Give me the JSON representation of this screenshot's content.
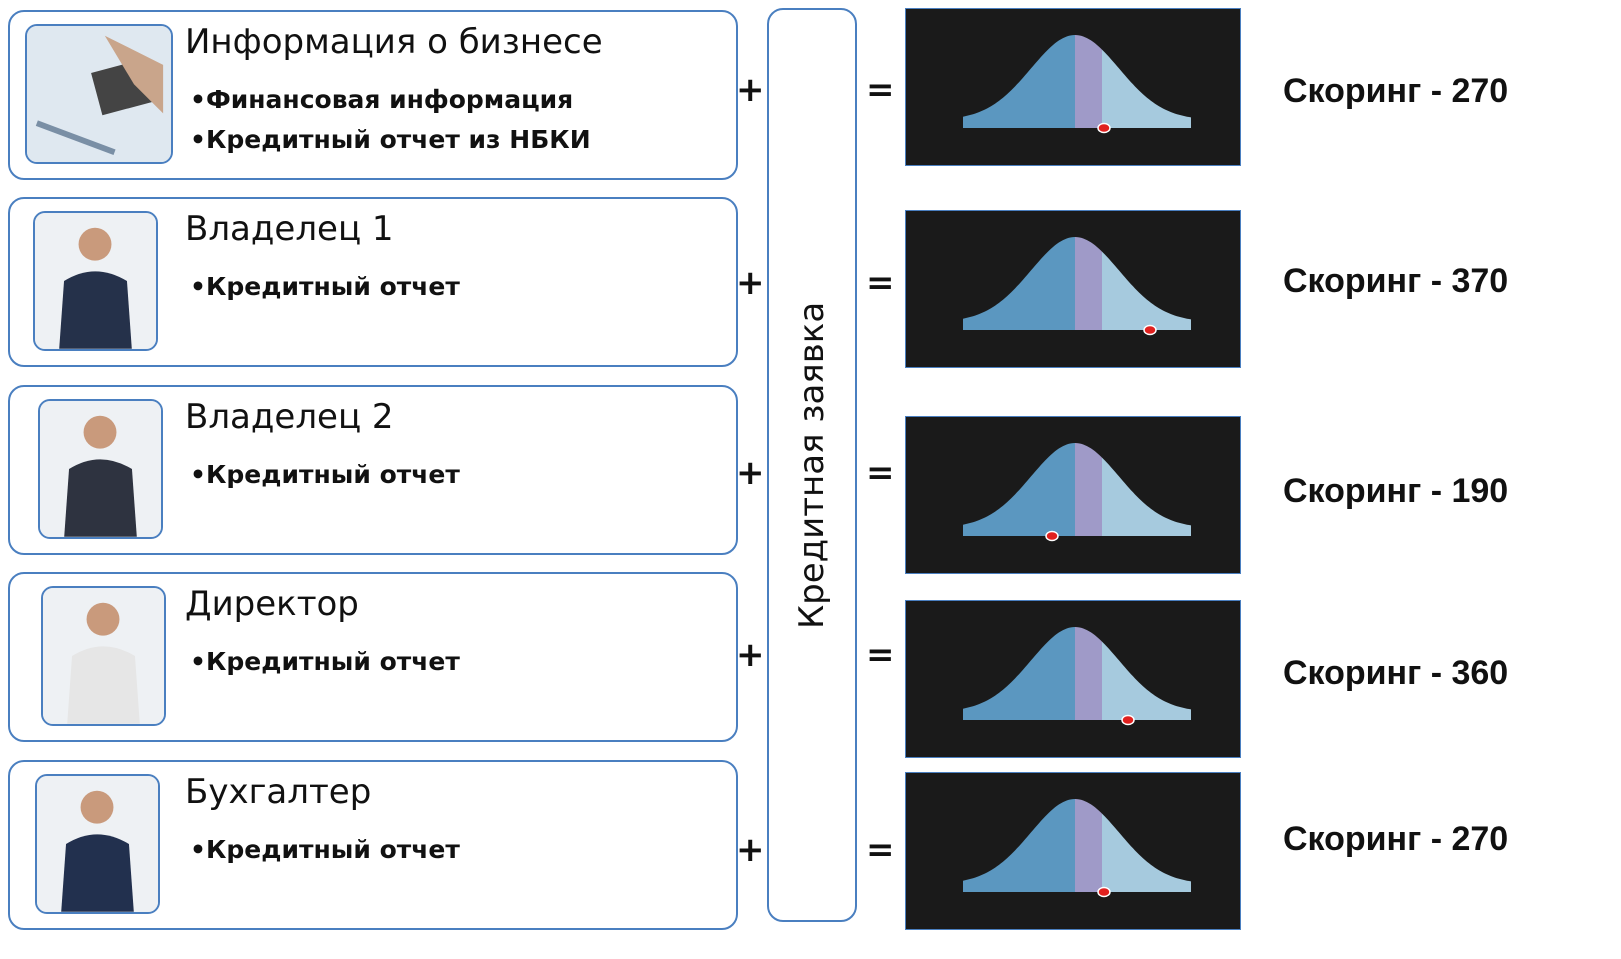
{
  "center_label": "Кредитная заявка",
  "plus": "+",
  "equals": "=",
  "rows": [
    {
      "title": "Информация о бизнесе",
      "bullets": [
        "Финансовая информация",
        "Кредитный отчет из НБКИ"
      ],
      "score": "Скоринг - 270"
    },
    {
      "title": "Владелец 1",
      "bullets": [
        "Кредитный отчет"
      ],
      "score": "Скоринг - 370"
    },
    {
      "title": "Владелец 2",
      "bullets": [
        "Кредитный отчет"
      ],
      "score": "Скоринг - 190"
    },
    {
      "title": "Директор",
      "bullets": [
        "Кредитный отчет"
      ],
      "score": "Скоринг - 360"
    },
    {
      "title": "Бухгалтер",
      "bullets": [
        "Кредитный отчет"
      ],
      "score": "Скоринг - 270"
    }
  ]
}
